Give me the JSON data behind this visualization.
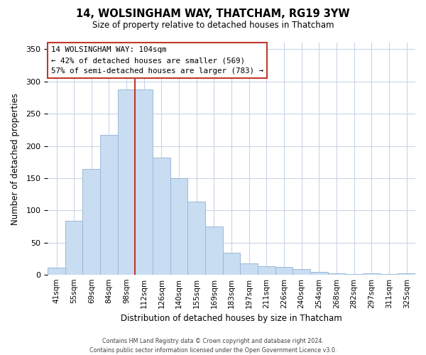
{
  "title": "14, WOLSINGHAM WAY, THATCHAM, RG19 3YW",
  "subtitle": "Size of property relative to detached houses in Thatcham",
  "xlabel": "Distribution of detached houses by size in Thatcham",
  "ylabel": "Number of detached properties",
  "bin_labels": [
    "41sqm",
    "55sqm",
    "69sqm",
    "84sqm",
    "98sqm",
    "112sqm",
    "126sqm",
    "140sqm",
    "155sqm",
    "169sqm",
    "183sqm",
    "197sqm",
    "211sqm",
    "226sqm",
    "240sqm",
    "254sqm",
    "268sqm",
    "282sqm",
    "297sqm",
    "311sqm",
    "325sqm"
  ],
  "bar_values": [
    11,
    84,
    164,
    217,
    287,
    287,
    182,
    150,
    114,
    75,
    34,
    18,
    14,
    12,
    9,
    5,
    3,
    1,
    3,
    1,
    3
  ],
  "bar_color": "#c9ddf2",
  "bar_edge_color": "#9ab8d8",
  "vline_color": "#c0392b",
  "vline_x": 4.5,
  "ylim": [
    0,
    360
  ],
  "yticks": [
    0,
    50,
    100,
    150,
    200,
    250,
    300,
    350
  ],
  "annotation_title": "14 WOLSINGHAM WAY: 104sqm",
  "annotation_line1": "← 42% of detached houses are smaller (569)",
  "annotation_line2": "57% of semi-detached houses are larger (783) →",
  "footer_line1": "Contains HM Land Registry data © Crown copyright and database right 2024.",
  "footer_line2": "Contains public sector information licensed under the Open Government Licence v3.0.",
  "background_color": "#ffffff",
  "grid_color": "#c8d4e8"
}
